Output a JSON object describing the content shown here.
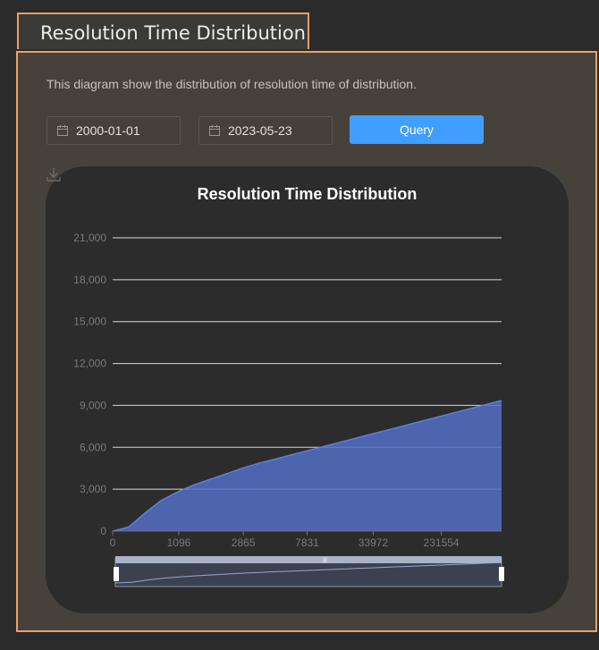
{
  "page": {
    "title": "Resolution Time Distribution"
  },
  "description": "This diagram show the distribution of resolution time of distribution.",
  "filters": {
    "start_date": "2000-01-01",
    "end_date": "2023-05-23",
    "query_label": "Query"
  },
  "icons": {
    "calendar": "calendar-icon",
    "download": "download-icon"
  },
  "colors": {
    "accent": "#409eff",
    "series": "#5470c6",
    "frame": "#f0a060"
  },
  "chart_data": {
    "type": "area",
    "title": "Resolution Time Distribution",
    "xlabel": "",
    "ylabel": "",
    "ylim": [
      0,
      21000
    ],
    "yticks": [
      "0",
      "3,000",
      "6,000",
      "9,000",
      "12,000",
      "15,000",
      "18,000",
      "21,000"
    ],
    "xtick_labels": [
      "0",
      "1096",
      "2865",
      "7831",
      "33972",
      "231554"
    ],
    "grid": true,
    "series": [
      {
        "values": [
          0,
          300,
          1300,
          2200,
          2800,
          3300,
          3700,
          4100,
          4500,
          4850,
          5150,
          5450,
          5750,
          6050,
          6350,
          6650,
          6950,
          7250,
          7550,
          7850,
          8150,
          8450,
          8750,
          9050,
          9350
        ]
      }
    ],
    "data_zoom": {
      "start": 0,
      "end": 1
    }
  }
}
